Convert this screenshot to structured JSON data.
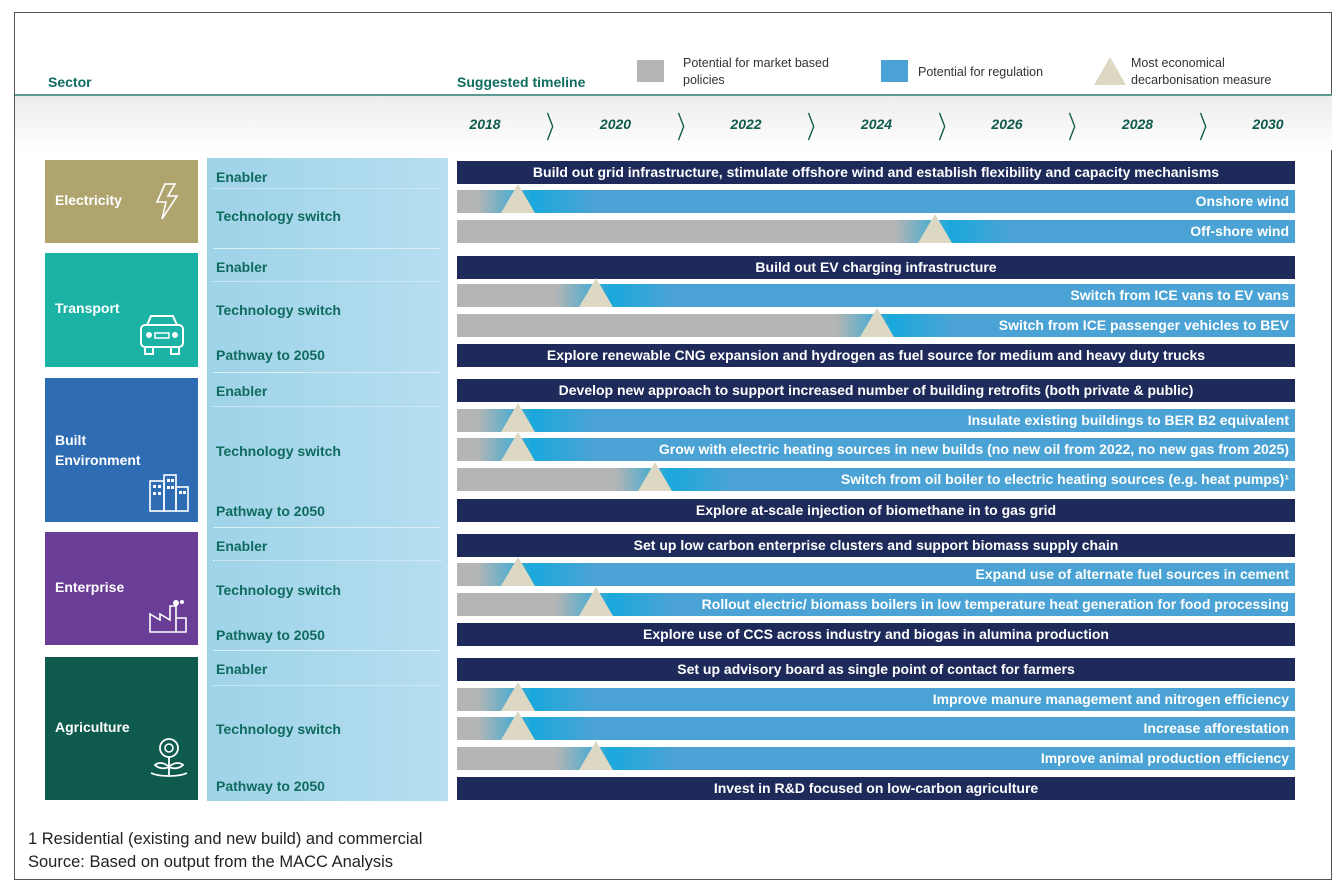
{
  "header": {
    "sector": "Sector",
    "timeline": "Suggested timeline"
  },
  "legend": [
    {
      "label_line1": "Potential for market based",
      "label_line2": "policies",
      "color": "#b4b5b5",
      "shape": "square"
    },
    {
      "label_line1": "Potential for regulation",
      "label_line2": "",
      "color": "#4aa3d4",
      "shape": "square"
    },
    {
      "label_line1": "Most economical",
      "label_line2": "decarbonisation measure",
      "color": "#ddd8c4",
      "shape": "triangle"
    }
  ],
  "years": [
    "2018",
    "2020",
    "2022",
    "2024",
    "2026",
    "2028",
    "2030"
  ],
  "colors": {
    "enabler": "#1e2a5a",
    "market": "#b4b5b5",
    "regulation": "#4aa3d4",
    "accent": "#0e6b5e"
  },
  "sectors": [
    {
      "name": "Electricity",
      "icon": "lightning-icon",
      "color": "#b0a46e",
      "categories": [
        "Enabler",
        "Technology switch"
      ],
      "bars": [
        {
          "type": "enabler",
          "text": "Build out grid infrastructure, stimulate offshore wind and establish flexibility and capacity mechanisms"
        },
        {
          "type": "tech",
          "text": "Onshore wind",
          "marker_year": 2018.5
        },
        {
          "type": "tech",
          "text": "Off-shore wind",
          "marker_year": 2024.9
        }
      ]
    },
    {
      "name": "Transport",
      "icon": "car-icon",
      "color": "#1ab3a6",
      "categories": [
        "Enabler",
        "Technology switch",
        "Pathway to 2050"
      ],
      "bars": [
        {
          "type": "enabler",
          "text": "Build out EV charging infrastructure"
        },
        {
          "type": "tech",
          "text": "Switch from ICE vans to EV vans",
          "marker_year": 2019.7
        },
        {
          "type": "tech",
          "text": "Switch from ICE passenger vehicles to BEV",
          "marker_year": 2024.0
        },
        {
          "type": "enabler",
          "text": "Explore renewable CNG expansion and hydrogen as fuel source for medium and heavy duty trucks"
        }
      ]
    },
    {
      "name": "Built Environment",
      "icon": "buildings-icon",
      "color": "#2e6db4",
      "categories": [
        "Enabler",
        "Technology switch",
        "Pathway to 2050"
      ],
      "bars": [
        {
          "type": "enabler",
          "text": "Develop new approach to support increased number of building retrofits (both private & public)"
        },
        {
          "type": "tech",
          "text": "Insulate existing buildings to BER B2 equivalent",
          "marker_year": 2018.5
        },
        {
          "type": "tech",
          "text": "Grow with electric heating sources in new builds (no new oil from 2022, no new gas from 2025)",
          "marker_year": 2018.5
        },
        {
          "type": "tech",
          "text": "Switch from oil boiler to electric heating sources (e.g. heat pumps)¹",
          "marker_year": 2020.6
        },
        {
          "type": "enabler",
          "text": "Explore at-scale injection of biomethane in to gas grid"
        }
      ]
    },
    {
      "name": "Enterprise",
      "icon": "factory-icon",
      "color": "#6a3d97",
      "categories": [
        "Enabler",
        "Technology switch",
        "Pathway to 2050"
      ],
      "bars": [
        {
          "type": "enabler",
          "text": "Set up low carbon enterprise clusters and support biomass supply chain"
        },
        {
          "type": "tech",
          "text": "Expand use of alternate fuel sources in cement",
          "marker_year": 2018.5
        },
        {
          "type": "tech",
          "text": "Rollout electric/ biomass boilers in low temperature heat generation for food processing",
          "marker_year": 2019.7
        },
        {
          "type": "enabler",
          "text": "Explore use of CCS across industry and biogas in alumina production"
        }
      ]
    },
    {
      "name": "Agriculture",
      "icon": "plant-icon",
      "color": "#0e5a4c",
      "categories": [
        "Enabler",
        "Technology switch",
        "Pathway to 2050"
      ],
      "bars": [
        {
          "type": "enabler",
          "text": "Set up advisory board as single point of contact for farmers"
        },
        {
          "type": "tech",
          "text": "Improve manure management and nitrogen efficiency",
          "marker_year": 2018.5
        },
        {
          "type": "tech",
          "text": "Increase afforestation",
          "marker_year": 2018.5
        },
        {
          "type": "tech",
          "text": "Improve animal production efficiency",
          "marker_year": 2019.7
        },
        {
          "type": "enabler",
          "text": "Invest in R&D focused on low-carbon agriculture"
        }
      ]
    }
  ],
  "footnotes": [
    "1 Residential (existing and new build) and commercial",
    "Source: Based on output from the MACC Analysis"
  ]
}
